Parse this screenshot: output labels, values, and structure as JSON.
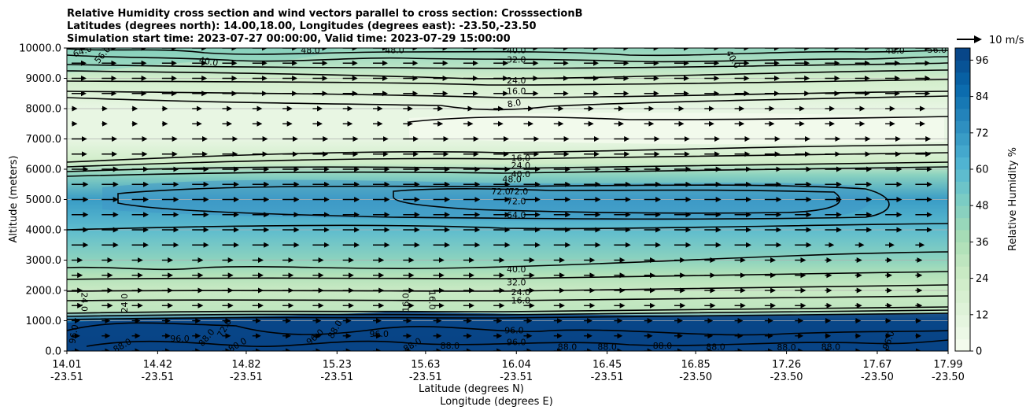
{
  "chart_data": {
    "type": "contour-cross-section",
    "title_lines": [
      "Relative Humidity cross section and wind vectors parallel to cross section: CrosssectionB",
      "Latitudes (degrees north): 14.00,18.00, Longitudes (degrees east): -23.50,-23.50",
      "Simulation start time: 2023-07-27 00:00:00, Valid time: 2023-07-29 15:00:00"
    ],
    "ylabel": "Altitude (meters)",
    "xlabel_lat": "Latitude (degrees N)",
    "xlabel_lon": "Longitude (degrees E)",
    "ylim": [
      0,
      10000
    ],
    "xlim": [
      14.01,
      17.99
    ],
    "y_ticks": [
      {
        "value": 0,
        "label": "0.0"
      },
      {
        "value": 1000,
        "label": "1000.0"
      },
      {
        "value": 2000,
        "label": "2000.0"
      },
      {
        "value": 3000,
        "label": "3000.0"
      },
      {
        "value": 4000,
        "label": "4000.0"
      },
      {
        "value": 5000,
        "label": "5000.0"
      },
      {
        "value": 6000,
        "label": "6000.0"
      },
      {
        "value": 7000,
        "label": "7000.0"
      },
      {
        "value": 8000,
        "label": "8000.0"
      },
      {
        "value": 9000,
        "label": "9000.0"
      },
      {
        "value": 10000,
        "label": "10000.0"
      }
    ],
    "x_ticks": [
      {
        "value": 14.01,
        "lat": "14.01",
        "lon": "-23.51"
      },
      {
        "value": 14.42,
        "lat": "14.42",
        "lon": "-23.51"
      },
      {
        "value": 14.82,
        "lat": "14.82",
        "lon": "-23.51"
      },
      {
        "value": 15.23,
        "lat": "15.23",
        "lon": "-23.51"
      },
      {
        "value": 15.63,
        "lat": "15.63",
        "lon": "-23.51"
      },
      {
        "value": 16.04,
        "lat": "16.04",
        "lon": "-23.51"
      },
      {
        "value": 16.45,
        "lat": "16.45",
        "lon": "-23.51"
      },
      {
        "value": 16.85,
        "lat": "16.85",
        "lon": "-23.50"
      },
      {
        "value": 17.26,
        "lat": "17.26",
        "lon": "-23.50"
      },
      {
        "value": 17.67,
        "lat": "17.67",
        "lon": "-23.50"
      },
      {
        "value": 17.99,
        "lat": "17.99",
        "lon": "-23.50"
      }
    ],
    "colorbar": {
      "label": "Relative Humidity %",
      "range": [
        0,
        100
      ],
      "ticks": [
        "0",
        "12",
        "24",
        "36",
        "48",
        "60",
        "72",
        "84",
        "96"
      ],
      "levels": 25
    },
    "quiver_key": "10 m/s",
    "humidity_profile": [
      {
        "altitude": 0,
        "rh": 92
      },
      {
        "altitude": 1000,
        "rh": 86
      },
      {
        "altitude": 1300,
        "rh": 30
      },
      {
        "altitude": 2000,
        "rh": 26
      },
      {
        "altitude": 2500,
        "rh": 34
      },
      {
        "altitude": 3000,
        "rh": 45
      },
      {
        "altitude": 4000,
        "rh": 58
      },
      {
        "altitude": 5000,
        "rh": 70
      },
      {
        "altitude": 5800,
        "rh": 46
      },
      {
        "altitude": 6200,
        "rh": 24
      },
      {
        "altitude": 7000,
        "rh": 8
      },
      {
        "altitude": 8000,
        "rh": 8
      },
      {
        "altitude": 9000,
        "rh": 22
      },
      {
        "altitude": 10000,
        "rh": 44
      }
    ],
    "contour_labels": [
      {
        "text": "64.0",
        "x": 14.08,
        "y": 9900,
        "rotate": -20
      },
      {
        "text": "56.0",
        "x": 14.17,
        "y": 9780,
        "rotate": -50
      },
      {
        "text": "40.0",
        "x": 14.65,
        "y": 9560,
        "rotate": 10
      },
      {
        "text": "48.0",
        "x": 15.11,
        "y": 9940,
        "rotate": 0
      },
      {
        "text": "48.0",
        "x": 15.49,
        "y": 9940,
        "rotate": 0
      },
      {
        "text": "40.0",
        "x": 16.04,
        "y": 9930,
        "rotate": 0
      },
      {
        "text": "32.0",
        "x": 16.04,
        "y": 9620,
        "rotate": 0
      },
      {
        "text": "40.0",
        "x": 17.02,
        "y": 9630,
        "rotate": 60
      },
      {
        "text": "48.0",
        "x": 17.75,
        "y": 9920,
        "rotate": 0
      },
      {
        "text": "56.0",
        "x": 17.94,
        "y": 9950,
        "rotate": 0
      },
      {
        "text": "24.0",
        "x": 16.04,
        "y": 8930,
        "rotate": 0
      },
      {
        "text": "16.0",
        "x": 16.04,
        "y": 8580,
        "rotate": 0
      },
      {
        "text": "8.0",
        "x": 16.03,
        "y": 8180,
        "rotate": -10
      },
      {
        "text": "16.0",
        "x": 16.06,
        "y": 6380,
        "rotate": 0
      },
      {
        "text": "24.0",
        "x": 16.06,
        "y": 6130,
        "rotate": 0
      },
      {
        "text": "40.0",
        "x": 16.06,
        "y": 5850,
        "rotate": 0
      },
      {
        "text": "48.0",
        "x": 16.02,
        "y": 5680,
        "rotate": 0
      },
      {
        "text": "72.0",
        "x": 15.97,
        "y": 5270,
        "rotate": 0
      },
      {
        "text": "72.0",
        "x": 16.05,
        "y": 5270,
        "rotate": 0
      },
      {
        "text": "72.0",
        "x": 16.04,
        "y": 4950,
        "rotate": 0
      },
      {
        "text": "64.0",
        "x": 16.04,
        "y": 4500,
        "rotate": 0
      },
      {
        "text": "40.0",
        "x": 16.04,
        "y": 2700,
        "rotate": 0
      },
      {
        "text": "32.0",
        "x": 16.04,
        "y": 2270,
        "rotate": 0
      },
      {
        "text": "24.0",
        "x": 16.06,
        "y": 1950,
        "rotate": 0
      },
      {
        "text": "16.0",
        "x": 16.06,
        "y": 1680,
        "rotate": 0
      },
      {
        "text": "24.0",
        "x": 14.09,
        "y": 1620,
        "rotate": 90
      },
      {
        "text": "24.0",
        "x": 14.27,
        "y": 1580,
        "rotate": -90
      },
      {
        "text": "16.0",
        "x": 15.54,
        "y": 1600,
        "rotate": -90
      },
      {
        "text": "16.0",
        "x": 15.66,
        "y": 1680,
        "rotate": 90
      },
      {
        "text": "96.0",
        "x": 14.52,
        "y": 410,
        "rotate": 0
      },
      {
        "text": "88.0",
        "x": 14.26,
        "y": 190,
        "rotate": -30
      },
      {
        "text": "72.0",
        "x": 14.72,
        "y": 760,
        "rotate": -60
      },
      {
        "text": "88.0",
        "x": 14.64,
        "y": 450,
        "rotate": -50
      },
      {
        "text": "96.0",
        "x": 14.04,
        "y": 560,
        "rotate": -80
      },
      {
        "text": "80.0",
        "x": 14.78,
        "y": 210,
        "rotate": -30
      },
      {
        "text": "96.0",
        "x": 15.13,
        "y": 470,
        "rotate": -40
      },
      {
        "text": "88.0",
        "x": 15.22,
        "y": 720,
        "rotate": -60
      },
      {
        "text": "96.0",
        "x": 15.42,
        "y": 570,
        "rotate": 0
      },
      {
        "text": "88.0",
        "x": 15.57,
        "y": 210,
        "rotate": -30
      },
      {
        "text": "88.0",
        "x": 15.74,
        "y": 180,
        "rotate": 0
      },
      {
        "text": "96.0",
        "x": 16.03,
        "y": 690,
        "rotate": 0
      },
      {
        "text": "96.0",
        "x": 16.04,
        "y": 300,
        "rotate": 0
      },
      {
        "text": "88.0",
        "x": 16.27,
        "y": 140,
        "rotate": 0
      },
      {
        "text": "88.0",
        "x": 16.45,
        "y": 140,
        "rotate": 0
      },
      {
        "text": "88.0",
        "x": 16.7,
        "y": 180,
        "rotate": 0
      },
      {
        "text": "88.0",
        "x": 16.94,
        "y": 140,
        "rotate": 0
      },
      {
        "text": "88.0",
        "x": 17.26,
        "y": 130,
        "rotate": 0
      },
      {
        "text": "88.0",
        "x": 17.46,
        "y": 140,
        "rotate": 0
      },
      {
        "text": "96.0",
        "x": 17.72,
        "y": 360,
        "rotate": -70
      }
    ]
  }
}
